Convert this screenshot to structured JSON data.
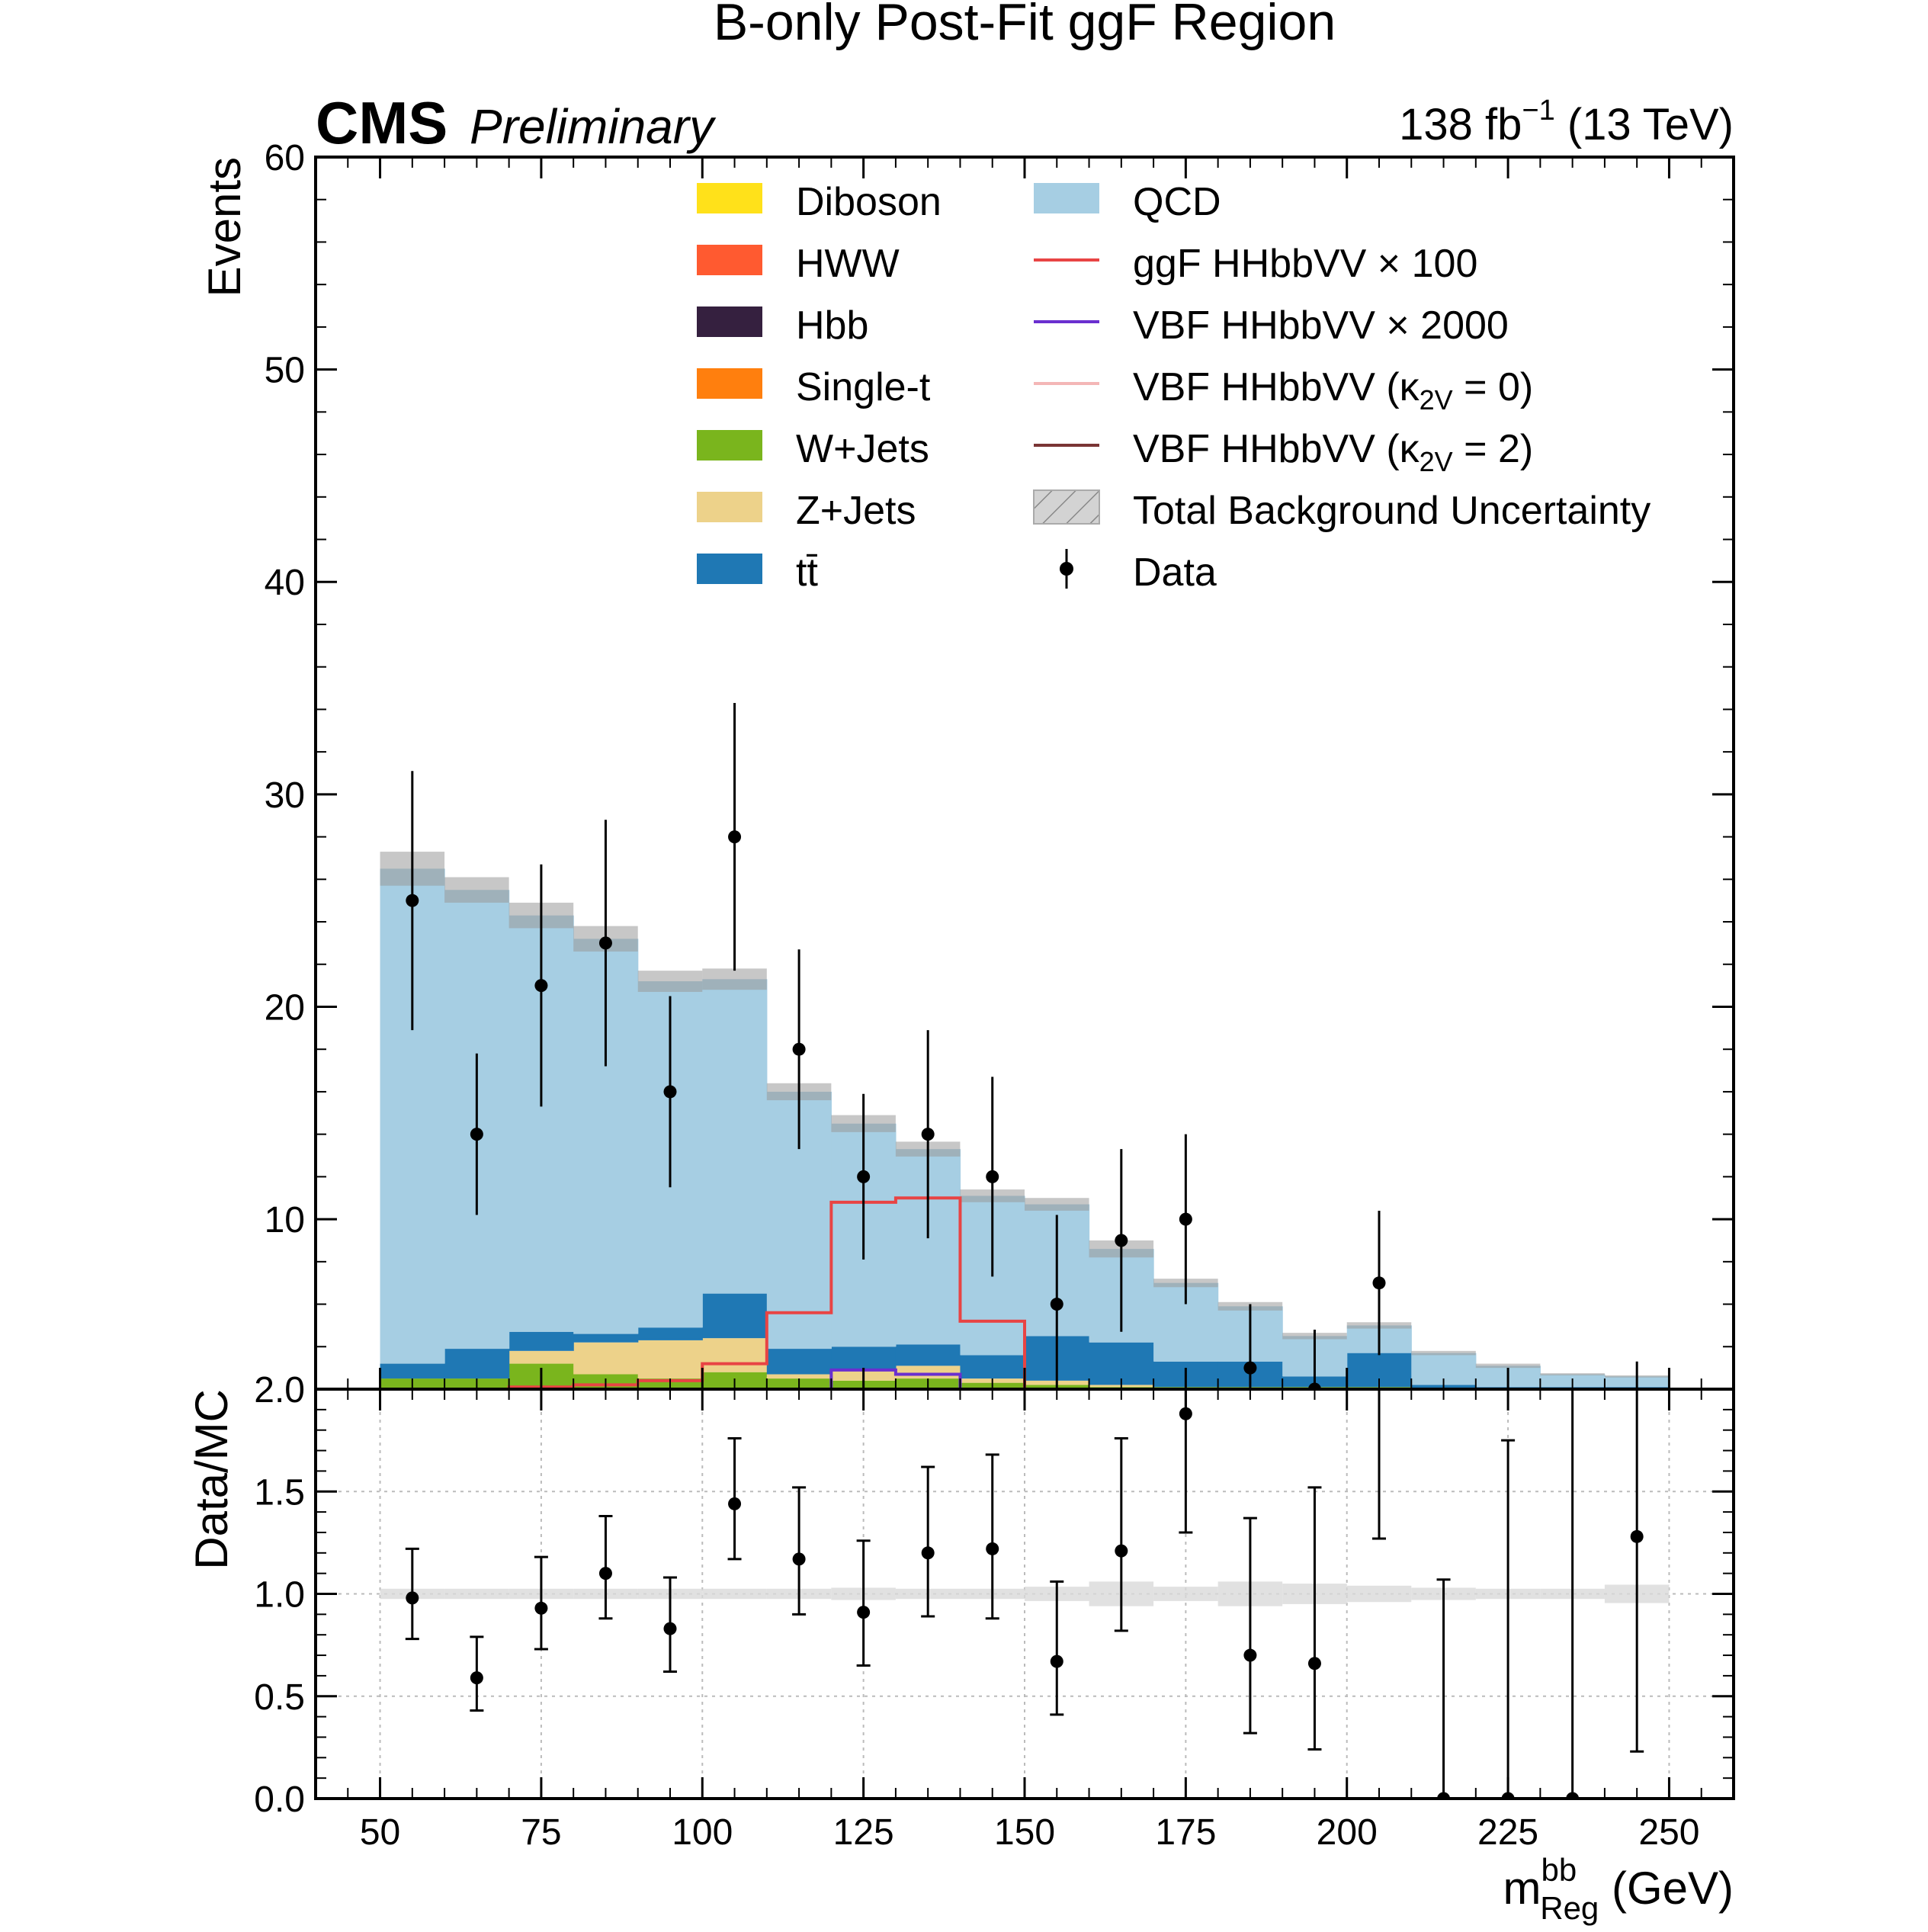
{
  "title": "B-only Post-Fit ggF Region",
  "header": {
    "experiment": "CMS",
    "status": "Preliminary",
    "lumi_value": "138 fb",
    "lumi_exponent": "−1",
    "energy": " (13 TeV)"
  },
  "xlabel": {
    "base": "m",
    "superscript": "bb",
    "subscript": "Reg",
    "unit": " (GeV)"
  },
  "legend": [
    {
      "kind": "box",
      "color": "#ffe11a",
      "label": "Diboson"
    },
    {
      "kind": "box",
      "color": "#ff5a30",
      "label": "HWW"
    },
    {
      "kind": "box",
      "color": "#35203f",
      "label": "Hbb"
    },
    {
      "kind": "box",
      "color": "#ff7f0e",
      "label": "Single-t"
    },
    {
      "kind": "box",
      "color": "#7ab51d",
      "label": "W+Jets"
    },
    {
      "kind": "box",
      "color": "#edd28a",
      "label": "Z+Jets"
    },
    {
      "kind": "box",
      "color": "#1f78b4",
      "label": "tt̄"
    },
    {
      "kind": "box",
      "color": "#a6cee3",
      "label": "QCD"
    },
    {
      "kind": "line",
      "color": "#e84444",
      "label": "ggF HHbbVV × 100"
    },
    {
      "kind": "line",
      "color": "#6a2fcf",
      "label": "VBF HHbbVV × 2000"
    },
    {
      "kind": "line",
      "color": "#f4b6b6",
      "label": "VBF HHbbVV (κ",
      "sub": "2V",
      "tail": " = 0)"
    },
    {
      "kind": "line",
      "color": "#7a3535",
      "label": "VBF HHbbVV (κ",
      "sub": "2V",
      "tail": " = 2)"
    },
    {
      "kind": "hatch",
      "color": "#bbbbbb",
      "label": "Total Background Uncertainty"
    },
    {
      "kind": "point",
      "color": "#000000",
      "label": "Data"
    }
  ],
  "chart_data": [
    {
      "type": "bar",
      "panel": "main",
      "ylabel": "Events",
      "xlim": [
        40,
        260
      ],
      "ylim": [
        2.0,
        60
      ],
      "y_tick_labels": [
        "2.0",
        "10",
        "20",
        "30",
        "40",
        "50",
        "60"
      ],
      "x_tick_labels": [
        "50",
        "75",
        "100",
        "125",
        "150",
        "175",
        "200",
        "225",
        "250"
      ],
      "bin_edges": [
        50,
        60,
        70,
        80,
        90,
        100,
        110,
        120,
        130,
        140,
        150,
        160,
        170,
        180,
        190,
        200,
        210,
        220,
        230,
        240,
        250
      ],
      "stack_order": [
        "W+Jets",
        "Z+Jets",
        "tt̄",
        "QCD"
      ],
      "series": [
        {
          "name": "W+Jets",
          "color": "#7ab51d",
          "values": [
            0.5,
            0.5,
            1.2,
            0.7,
            0.5,
            0.8,
            0.5,
            0.4,
            0.5,
            0.3,
            0.2,
            0.1,
            0.1,
            0.1,
            0.1,
            0.1,
            0,
            0,
            0,
            0
          ]
        },
        {
          "name": "Z+Jets",
          "color": "#edd28a",
          "values": [
            0,
            0,
            0.6,
            1.5,
            1.8,
            1.6,
            0.2,
            0.5,
            0.6,
            0.2,
            0.2,
            0.1,
            0,
            0,
            0,
            0,
            0,
            0,
            0,
            0
          ]
        },
        {
          "name": "tt̄",
          "color": "#1f78b4",
          "values": [
            0.7,
            1.4,
            0.9,
            0.4,
            0.6,
            2.1,
            1.2,
            1.1,
            1.0,
            1.1,
            2.1,
            2.0,
            1.2,
            1.2,
            0.5,
            1.6,
            0.2,
            0.1,
            0.1,
            0.1
          ]
        },
        {
          "name": "QCD",
          "color": "#a6cee3",
          "values": [
            23.3,
            21.6,
            19.6,
            18.6,
            16.3,
            14.8,
            12.1,
            10.5,
            9.2,
            7.5,
            6.2,
            4.4,
            3.7,
            2.6,
            1.9,
            1.3,
            1.5,
            1.0,
            0.6,
            0.5
          ]
        }
      ],
      "background_uncertainty": [
        0.8,
        0.6,
        0.6,
        0.6,
        0.5,
        0.5,
        0.4,
        0.4,
        0.35,
        0.3,
        0.3,
        0.4,
        0.2,
        0.2,
        0.15,
        0.15,
        0.1,
        0.1,
        0.05,
        0.05
      ],
      "signals": [
        {
          "name": "ggF HHbbVV × 100",
          "color": "#e84444",
          "values": [
            0,
            0,
            0.1,
            0.2,
            0.4,
            1.2,
            3.6,
            8.8,
            9.0,
            3.2,
            0,
            -1.4,
            -1.6,
            -1.7,
            -1.8,
            -1.9,
            -1.9,
            -1.9,
            -1.9,
            -1.9
          ]
        },
        {
          "name": "VBF HHbbVV × 2000",
          "color": "#6a2fcf",
          "values": [
            0,
            0,
            0,
            0,
            0,
            0,
            0,
            0.9,
            0.7,
            -0.7,
            -1.6,
            -1.8,
            -1.9,
            -1.9,
            -1.9,
            -1.9,
            -1.9,
            -1.9,
            -1.9,
            -1.9
          ]
        }
      ],
      "data": {
        "x": [
          55,
          65,
          75,
          85,
          95,
          105,
          115,
          125,
          135,
          145,
          155,
          165,
          175,
          185,
          195,
          205,
          215,
          225,
          235,
          245
        ],
        "y": [
          25,
          14,
          21,
          23,
          16,
          28,
          18,
          12,
          14,
          12,
          6,
          9,
          10,
          3,
          2,
          7,
          0,
          0,
          0,
          1
        ],
        "yerr": [
          6.1,
          3.8,
          5.7,
          5.8,
          4.5,
          6.3,
          4.7,
          3.9,
          4.9,
          4.7,
          4.2,
          4.3,
          4.0,
          3.0,
          2.8,
          3.4,
          0,
          0,
          0,
          2.3
        ]
      }
    },
    {
      "type": "scatter",
      "panel": "ratio",
      "ylabel": "Data/MC",
      "xlim": [
        40,
        260
      ],
      "ylim": [
        0,
        2.0
      ],
      "y_tick_labels": [
        "0.0",
        "0.5",
        "1.0",
        "1.5"
      ],
      "x_tick_labels": [
        "50",
        "75",
        "100",
        "125",
        "150",
        "175",
        "200",
        "225",
        "250"
      ],
      "x": [
        55,
        65,
        75,
        85,
        95,
        105,
        115,
        125,
        135,
        145,
        155,
        165,
        175,
        185,
        195,
        205,
        215,
        225,
        235,
        245
      ],
      "y": [
        0.98,
        0.59,
        0.93,
        1.1,
        0.83,
        1.44,
        1.17,
        0.91,
        1.2,
        1.22,
        0.67,
        1.21,
        1.88,
        0.7,
        0.66,
        2.05,
        0,
        0,
        0,
        1.28
      ],
      "yerr_low": [
        0.2,
        0.16,
        0.2,
        0.22,
        0.21,
        0.27,
        0.27,
        0.26,
        0.31,
        0.34,
        0.26,
        0.39,
        0.58,
        0.38,
        0.42,
        0.78,
        0,
        0,
        0,
        1.05
      ],
      "yerr_high": [
        0.24,
        0.2,
        0.25,
        0.28,
        0.25,
        0.32,
        0.35,
        0.35,
        0.42,
        0.46,
        0.39,
        0.55,
        0.76,
        0.67,
        0.86,
        0.94,
        1.07,
        1.75,
        2.1,
        0.78
      ],
      "band_halfwidth": [
        0.025,
        0.025,
        0.025,
        0.025,
        0.025,
        0.025,
        0.025,
        0.03,
        0.025,
        0.025,
        0.035,
        0.06,
        0.035,
        0.06,
        0.05,
        0.04,
        0.03,
        0.025,
        0.025,
        0.045
      ],
      "reference": 1.0
    }
  ]
}
